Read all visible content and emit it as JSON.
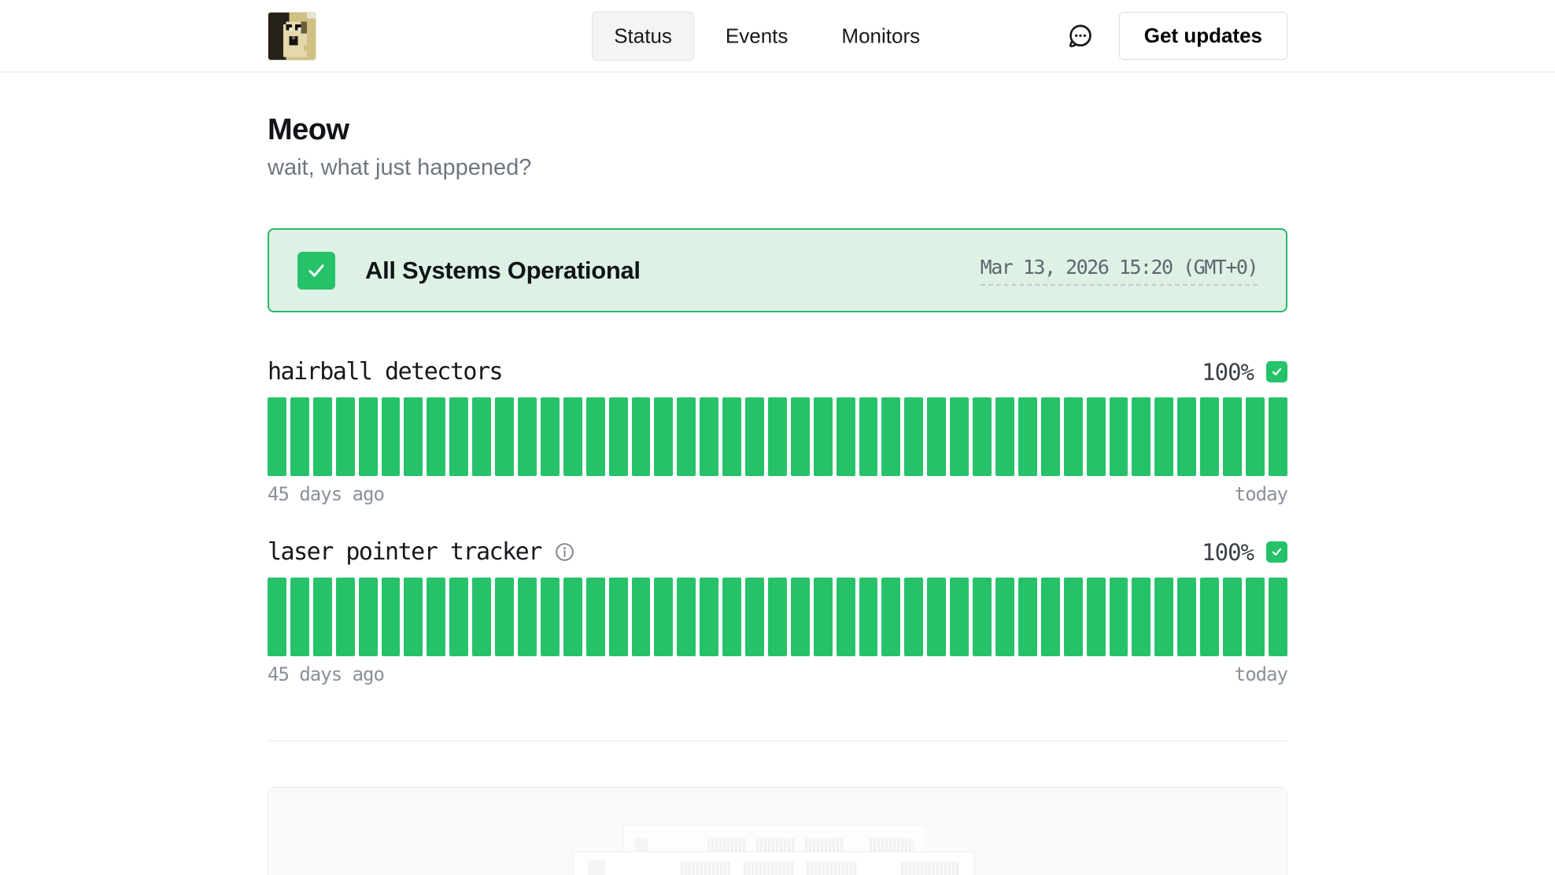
{
  "header": {
    "logo": "shocked-cat-avatar",
    "tabs": [
      {
        "label": "Status",
        "active": true
      },
      {
        "label": "Events",
        "active": false
      },
      {
        "label": "Monitors",
        "active": false
      }
    ],
    "chat_icon": "speech-bubble-ellipsis",
    "get_updates_label": "Get updates"
  },
  "page": {
    "title": "Meow",
    "subtitle": "wait, what just happened?"
  },
  "status_banner": {
    "icon": "check",
    "label": "All Systems Operational",
    "timestamp": "Mar 13, 2026 15:20 (GMT+0)"
  },
  "monitors": [
    {
      "name": "hairball detectors",
      "uptime": "100%",
      "status": "operational",
      "days": 45,
      "start_label": "45 days ago",
      "end_label": "today",
      "has_info_icon": false
    },
    {
      "name": "laser pointer tracker",
      "uptime": "100%",
      "status": "operational",
      "days": 45,
      "start_label": "45 days ago",
      "end_label": "today",
      "has_info_icon": true
    }
  ],
  "colors": {
    "green": "#26c269",
    "banner_background": "#ddf1e5",
    "banner_border": "#2cb767",
    "subtitle_gray": "#6f7680",
    "axis_label_gray": "#8a9099"
  }
}
